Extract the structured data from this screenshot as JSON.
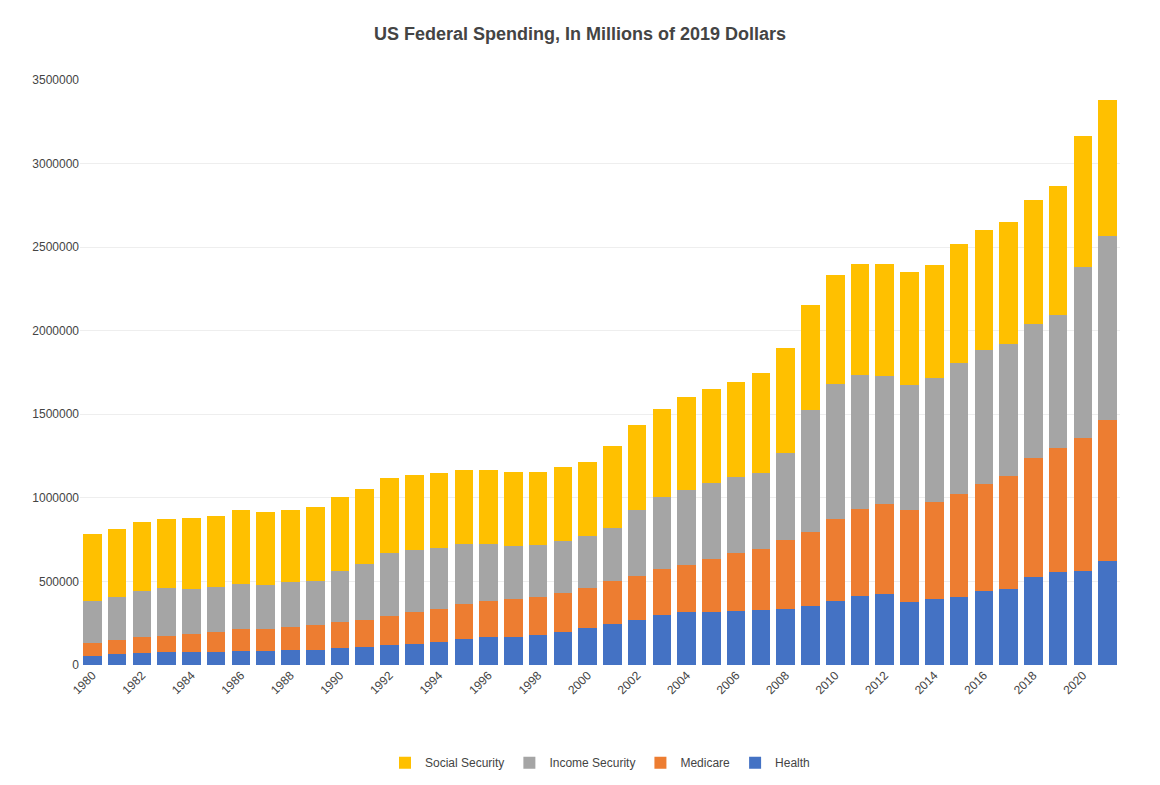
{
  "chart_data": {
    "type": "bar",
    "title": "US Federal Spending, In Millions of 2019 Dollars",
    "stacked": true,
    "grid": true,
    "legend": "bottom",
    "categories": [
      "1980",
      null,
      "1982",
      null,
      "1984",
      null,
      "1986",
      null,
      "1988",
      null,
      "1990",
      null,
      "1992",
      null,
      "1994",
      null,
      "1996",
      null,
      "1998",
      null,
      "2000",
      null,
      "2002",
      null,
      "2004",
      null,
      "2006",
      null,
      "2008",
      null,
      "2010",
      null,
      "2012",
      null,
      "2014",
      null,
      "2016",
      null,
      "2018",
      null,
      "2020",
      null
    ],
    "series": [
      {
        "name": "Health",
        "color": "#4472C4",
        "values": [
          55000,
          65000,
          70000,
          75000,
          75000,
          80000,
          85000,
          85000,
          90000,
          92000,
          100000,
          108000,
          118000,
          128000,
          138000,
          155000,
          165000,
          170000,
          180000,
          195000,
          220000,
          245000,
          270000,
          300000,
          315000,
          320000,
          325000,
          330000,
          335000,
          355000,
          385000,
          415000,
          425000,
          375000,
          395000,
          405000,
          445000,
          455000,
          525000,
          555000,
          565000,
          625000
        ]
      },
      {
        "name": "Medicare",
        "color": "#ED7D31",
        "values": [
          75000,
          85000,
          95000,
          100000,
          108000,
          115000,
          130000,
          133000,
          140000,
          150000,
          160000,
          163000,
          178000,
          188000,
          196000,
          210000,
          217000,
          222000,
          227000,
          237000,
          242000,
          257000,
          262000,
          272000,
          285000,
          317000,
          345000,
          365000,
          410000,
          440000,
          490000,
          518000,
          538000,
          553000,
          578000,
          618000,
          638000,
          675000,
          715000,
          742000,
          795000,
          838000
        ]
      },
      {
        "name": "Income Security",
        "color": "#A5A5A5",
        "values": [
          250000,
          255000,
          280000,
          285000,
          272000,
          270000,
          270000,
          262000,
          265000,
          263000,
          300000,
          335000,
          375000,
          373000,
          365000,
          358000,
          340000,
          322000,
          308000,
          308000,
          308000,
          315000,
          395000,
          432000,
          450000,
          450000,
          452000,
          456000,
          525000,
          730000,
          805000,
          800000,
          765000,
          747000,
          747000,
          786000,
          803000,
          790000,
          803000,
          800000,
          1020000,
          1105000
        ]
      },
      {
        "name": "Social Security",
        "color": "#FFC000",
        "values": [
          405000,
          408000,
          408000,
          415000,
          422000,
          428000,
          445000,
          433000,
          433000,
          438000,
          445000,
          445000,
          445000,
          450000,
          450000,
          443000,
          443000,
          443000,
          438000,
          445000,
          445000,
          495000,
          508000,
          528000,
          553000,
          563000,
          574000,
          596000,
          625000,
          630000,
          652000,
          664000,
          674000,
          675000,
          675000,
          707000,
          719000,
          731000,
          742000,
          770000,
          785000,
          810000
        ]
      }
    ],
    "ylim": [
      0,
      3500000
    ],
    "yticks": [
      0,
      500000,
      1000000,
      1500000,
      2000000,
      2500000,
      3000000,
      3500000
    ]
  }
}
